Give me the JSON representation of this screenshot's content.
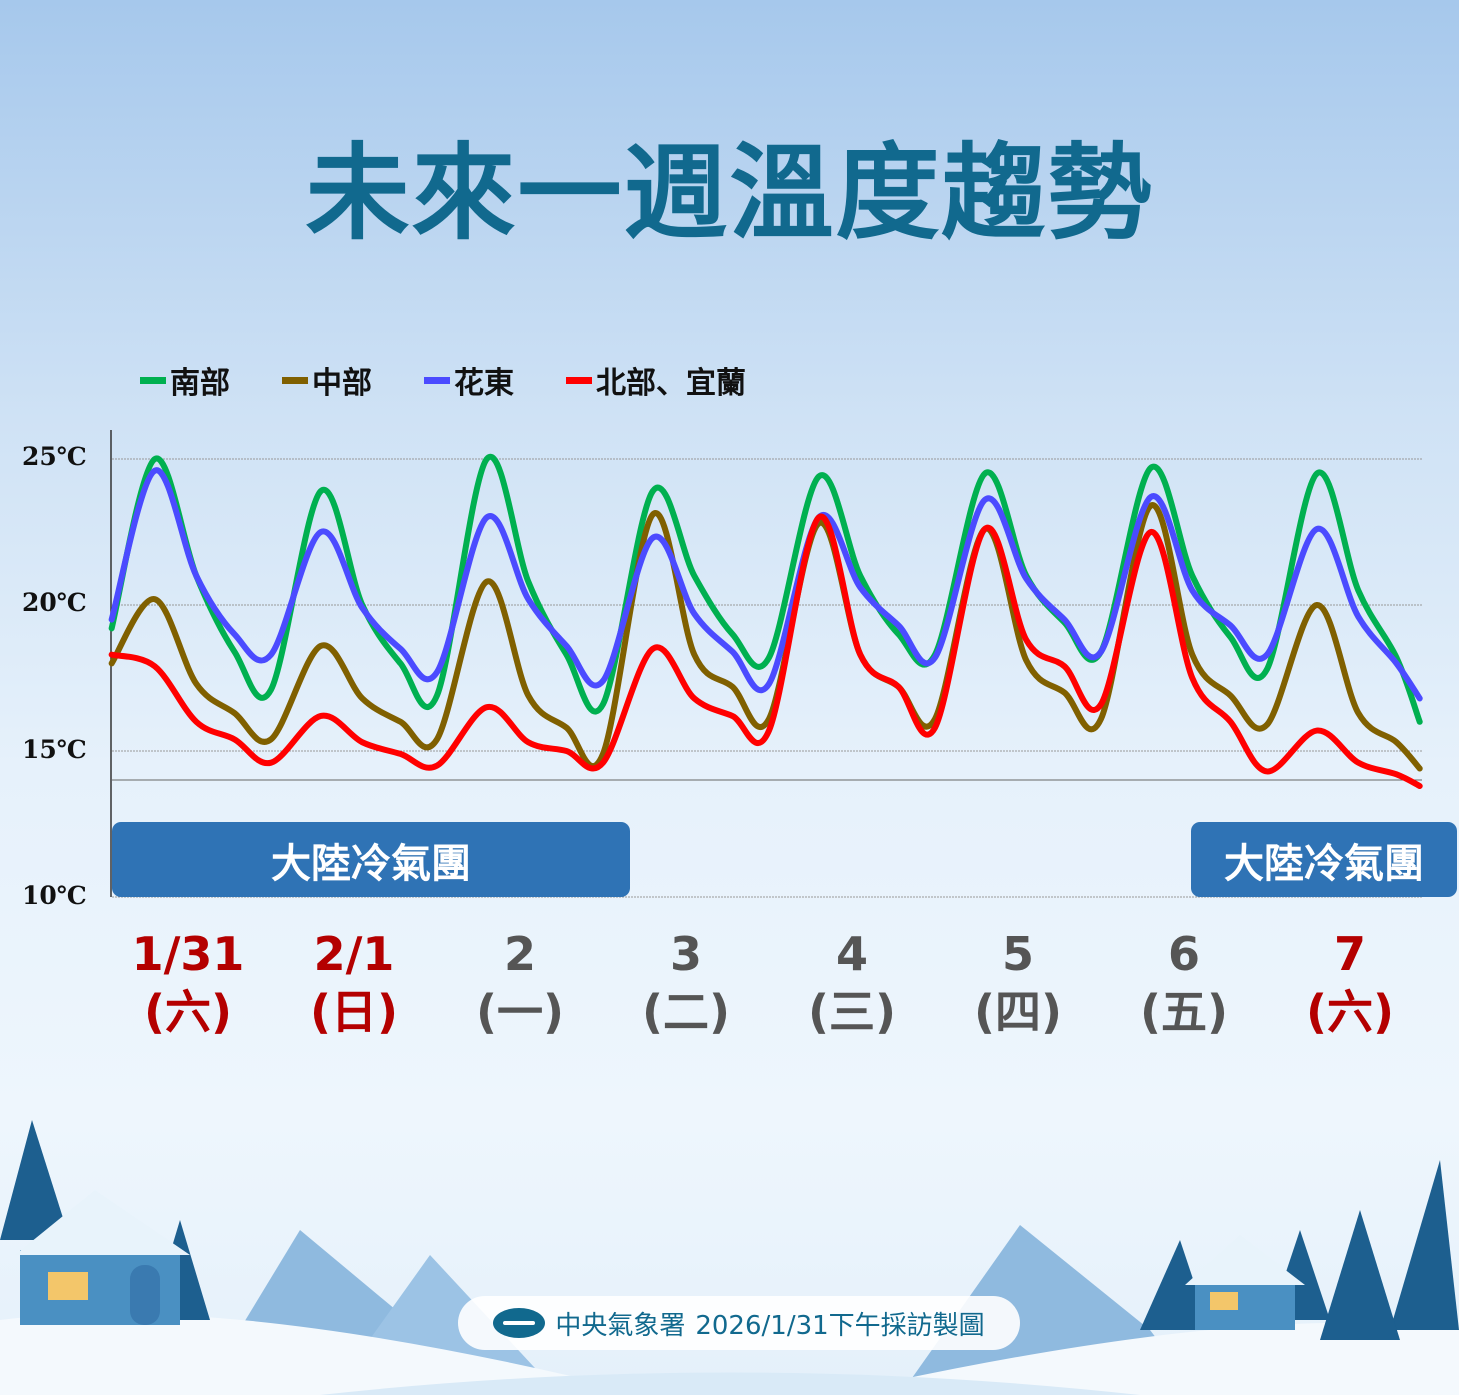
{
  "title": "未來一週溫度趨勢",
  "legend": [
    {
      "label": "南部",
      "color": "#00b050"
    },
    {
      "label": "中部",
      "color": "#806000"
    },
    {
      "label": "花東",
      "color": "#4b4bff"
    },
    {
      "label": "北部、宜蘭",
      "color": "#ff0000"
    }
  ],
  "banners": [
    "大陸冷氣團",
    "大陸冷氣團"
  ],
  "days": [
    {
      "date": "1/31",
      "weekday": "(六)",
      "weekend": true
    },
    {
      "date": "2/1",
      "weekday": "(日)",
      "weekend": true
    },
    {
      "date": "2",
      "weekday": "(一)",
      "weekend": false
    },
    {
      "date": "3",
      "weekday": "(二)",
      "weekend": false
    },
    {
      "date": "4",
      "weekday": "(三)",
      "weekend": false
    },
    {
      "date": "5",
      "weekday": "(四)",
      "weekend": false
    },
    {
      "date": "6",
      "weekday": "(五)",
      "weekend": false
    },
    {
      "date": "7",
      "weekday": "(六)",
      "weekend": true
    }
  ],
  "footer": {
    "org": "中央氣象署",
    "text": "2026/1/31下午採訪製圖"
  },
  "chart_data": {
    "type": "line",
    "title": "未來一週溫度趨勢",
    "xlabel": "",
    "ylabel": "",
    "ylim": [
      10,
      25
    ],
    "yticks": [
      "25℃",
      "20℃",
      "15℃",
      "10℃"
    ],
    "ytick_values": [
      25,
      20,
      15,
      10
    ],
    "grid": true,
    "legend_position": "top-left",
    "x_unit": "days from 1/31 00:00",
    "x": [
      0.04,
      0.3,
      0.55,
      0.78,
      1.0,
      1.3,
      1.55,
      1.78,
      2.0,
      2.3,
      2.55,
      2.78,
      3.0,
      3.3,
      3.55,
      3.78,
      4.0,
      4.3,
      4.55,
      4.78,
      5.0,
      5.3,
      5.55,
      5.78,
      6.0,
      6.3,
      6.55,
      6.78,
      7.0,
      7.3,
      7.55,
      7.78,
      7.92
    ],
    "series": [
      {
        "name": "南部",
        "color": "#00b050",
        "values": [
          19.2,
          25.0,
          21.0,
          18.4,
          17.1,
          23.9,
          20.0,
          18.0,
          16.9,
          25.0,
          20.8,
          18.3,
          16.6,
          23.9,
          21.0,
          19.0,
          18.2,
          24.4,
          21.0,
          19.0,
          18.3,
          24.5,
          21.0,
          19.4,
          18.4,
          24.7,
          21.0,
          18.9,
          17.8,
          24.5,
          20.5,
          18.2,
          16.0
        ]
      },
      {
        "name": "中部",
        "color": "#806000",
        "values": [
          18.0,
          20.2,
          17.3,
          16.3,
          15.4,
          18.6,
          16.8,
          16.0,
          15.4,
          20.8,
          16.9,
          15.8,
          14.9,
          23.1,
          18.3,
          17.2,
          16.1,
          22.8,
          18.3,
          17.2,
          16.1,
          22.6,
          18.1,
          17.0,
          16.1,
          23.4,
          18.3,
          16.9,
          15.9,
          20.0,
          16.3,
          15.3,
          14.4
        ]
      },
      {
        "name": "花東",
        "color": "#4b4bff",
        "values": [
          19.5,
          24.6,
          21.0,
          19.0,
          18.3,
          22.5,
          19.9,
          18.5,
          17.7,
          23.0,
          20.2,
          18.6,
          17.4,
          22.3,
          19.7,
          18.4,
          17.3,
          23.0,
          20.6,
          19.3,
          18.2,
          23.6,
          20.9,
          19.5,
          18.4,
          23.7,
          20.5,
          19.3,
          18.3,
          22.6,
          19.6,
          18.0,
          16.8
        ]
      },
      {
        "name": "北部、宜蘭",
        "color": "#ff0000",
        "values": [
          18.3,
          17.9,
          16.0,
          15.4,
          14.6,
          16.2,
          15.3,
          14.9,
          14.5,
          16.5,
          15.3,
          15.0,
          14.6,
          18.5,
          16.8,
          16.2,
          15.7,
          23.0,
          18.3,
          17.2,
          15.8,
          22.6,
          18.8,
          17.9,
          16.6,
          22.5,
          17.5,
          16.0,
          14.3,
          15.7,
          14.6,
          14.2,
          13.8
        ]
      }
    ]
  }
}
